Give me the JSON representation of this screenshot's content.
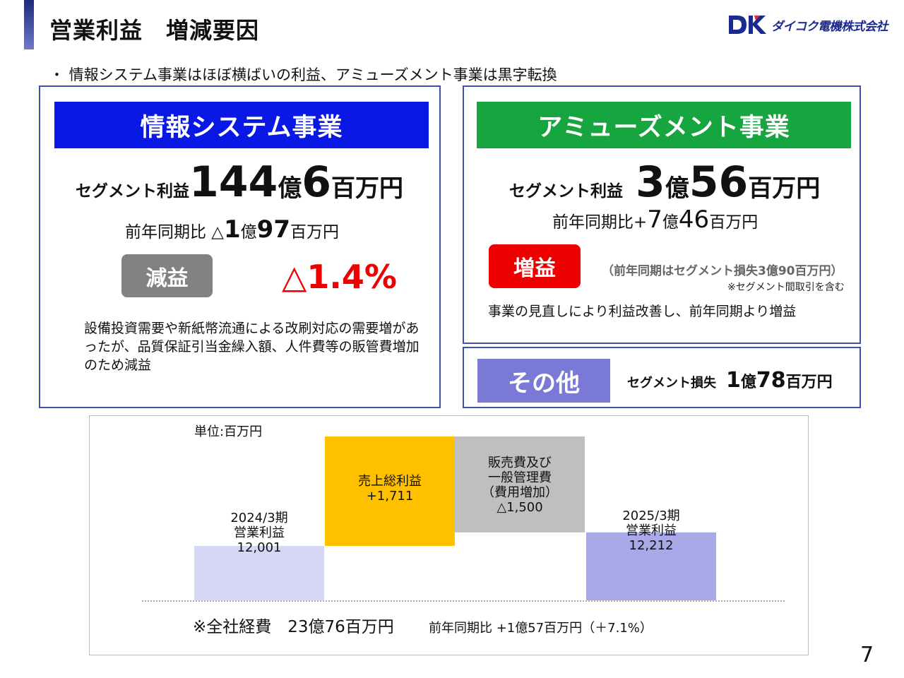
{
  "header": {
    "title": "営業利益　増減要因",
    "logo_text": "ダイコク電機株式会社"
  },
  "bullet": "・ 情報システム事業はほぼ横ばいの利益、アミューズメント事業は黒字転換",
  "info_system": {
    "header": "情報システム事業",
    "profit_label": "セグメント利益",
    "profit_oku": "144",
    "profit_oku_unit": "億",
    "profit_man": "6",
    "profit_man_unit": "百万円",
    "yoy_label": "前年同期比 △",
    "yoy_oku": "1",
    "yoy_oku_unit": "億",
    "yoy_man": "97",
    "yoy_man_unit": "百万円",
    "badge": "減益",
    "change_pct": "△1.4%",
    "note": "設備投資需要や新紙幣流通による改刷対応の需要増があったが、品質保証引当金繰入額、人件費等の販管費増加のため減益",
    "colors": {
      "header_bg": "#0a18e6",
      "badge_bg": "#828282",
      "pct": "#ee0000"
    }
  },
  "amusement": {
    "header": "アミューズメント事業",
    "profit_label": "セグメント利益",
    "profit_oku": "3",
    "profit_oku_unit": "億",
    "profit_man": "56",
    "profit_man_unit": "百万円",
    "yoy_label": "前年同期比+",
    "yoy_oku": "7",
    "yoy_oku_unit": "億",
    "yoy_man": "46",
    "yoy_man_unit": "百万円",
    "badge": "増益",
    "prior_note": "（前年同期はセグメント損失3億90百万円）",
    "elimination_note": "※セグメント間取引を含む",
    "note": "事業の見直しにより利益改善し、前年同期より増益",
    "colors": {
      "header_bg": "#17a53f",
      "badge_bg": "#ee0000"
    }
  },
  "other": {
    "badge": "その他",
    "label": "セグメント損失",
    "oku": "1",
    "oku_unit": "億",
    "man": "78",
    "man_unit": "百万円",
    "colors": {
      "badge_bg": "#7a7ad6"
    }
  },
  "chart_data": {
    "type": "bar",
    "subtype": "waterfall",
    "unit_label": "単位:百万円",
    "bars": [
      {
        "label_lines": [
          "2024/3期",
          "営業利益",
          "12,001"
        ],
        "value": 12001,
        "kind": "total",
        "color": "#d6d6f5"
      },
      {
        "label_lines": [
          "売上総利益",
          "+1,711"
        ],
        "value": 1711,
        "kind": "increase",
        "color": "#ffc000"
      },
      {
        "label_lines": [
          "販売費及び",
          "一般管理費",
          "（費用増加）",
          "△1,500"
        ],
        "value": -1500,
        "kind": "decrease",
        "color": "#bfbfbf"
      },
      {
        "label_lines": [
          "2025/3期",
          "営業利益",
          "12,212"
        ],
        "value": 12212,
        "kind": "total",
        "color": "#a9a9e8"
      }
    ],
    "footnote_main": "※全社経費　23億76百万円",
    "footnote_sub": "前年同期比 +1億57百万円（＋7.1%）"
  },
  "page_number": "7"
}
